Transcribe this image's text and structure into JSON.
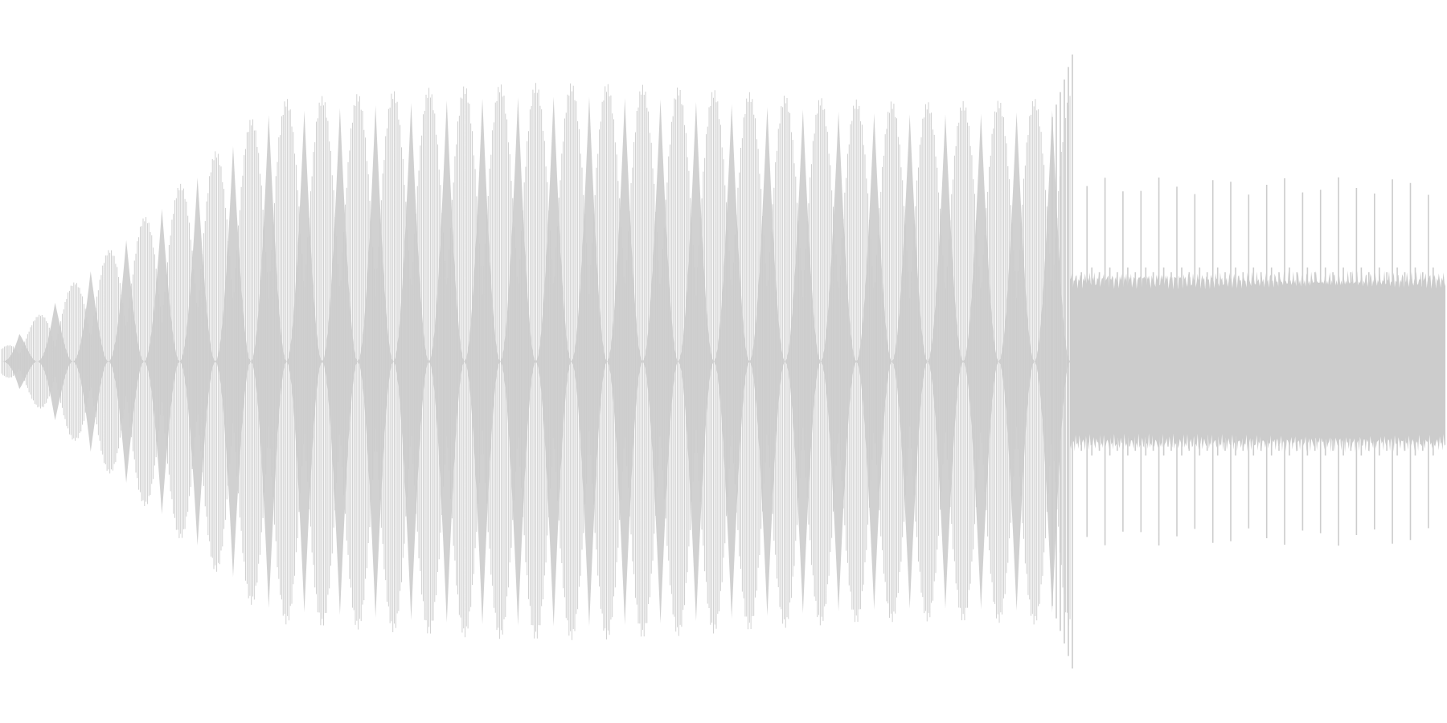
{
  "waveform": {
    "color": "#cccccc",
    "background": "#ffffff",
    "segments": [
      {
        "name": "swelling-beat",
        "duration_fraction": 0.74,
        "carrier_cycles": 740,
        "beat_cycles": 30,
        "envelope_start": 0.04,
        "envelope_peak": 0.86,
        "ramp_fraction": 0.26
      },
      {
        "name": "pulse-train",
        "duration_fraction": 0.26,
        "pulse_count": 20,
        "floor_level": 0.26,
        "spike_level": 0.56,
        "secondary_level": 0.3
      }
    ]
  }
}
